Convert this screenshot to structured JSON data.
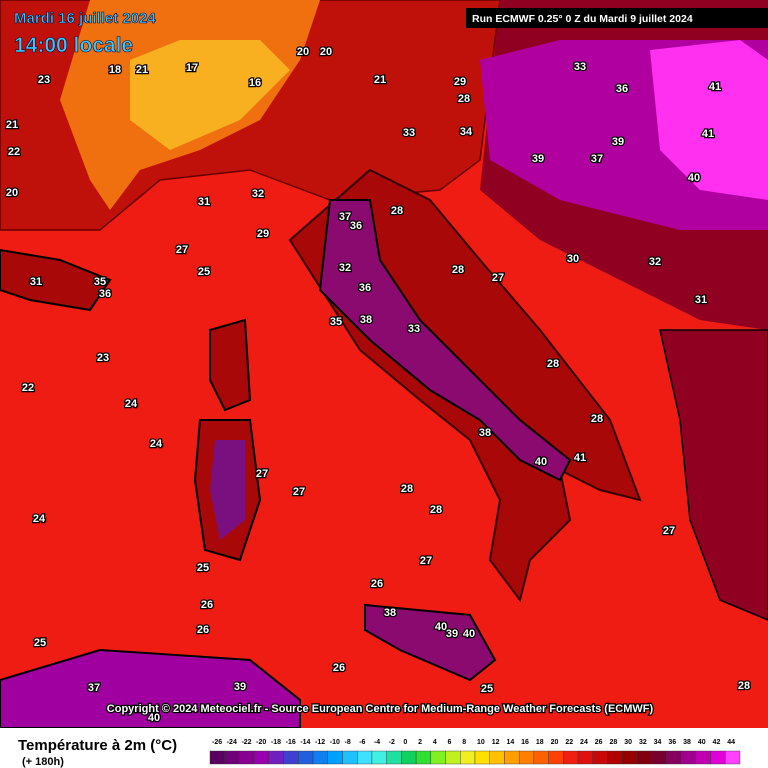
{
  "header": {
    "date": "Mardi 16 juillet 2024",
    "time": "14:00 locale",
    "run": "Run ECMWF 0.25° 0 Z du Mardi 9 juillet 2024"
  },
  "map": {
    "labels": [
      23,
      21,
      22,
      20,
      18,
      21,
      17,
      16,
      20,
      20,
      21,
      29,
      28,
      33,
      36,
      41,
      41,
      39,
      39,
      37,
      40,
      33,
      34,
      31,
      32,
      31,
      35,
      36,
      27,
      25,
      29,
      37,
      36,
      28,
      32,
      36,
      38,
      35,
      33,
      28,
      27,
      30,
      32,
      31,
      23,
      24,
      22,
      24,
      27,
      27,
      28,
      28,
      38,
      40,
      41,
      28,
      28,
      27,
      25,
      26,
      26,
      26,
      38,
      40,
      39,
      40,
      26,
      25,
      39,
      37,
      40,
      25,
      24,
      27,
      28
    ],
    "copyright": "Copyright © 2024 Meteociel.fr - Source European Centre for Medium-Range Weather Forecasts (ECMWF)"
  },
  "legend": {
    "title": "Température à 2m (°C)",
    "lead": "(+ 180h)",
    "ticks": [
      -26,
      -24,
      -22,
      -20,
      -18,
      -16,
      -14,
      -12,
      -10,
      -8,
      -6,
      -4,
      -2,
      0,
      2,
      4,
      6,
      8,
      10,
      12,
      14,
      16,
      18,
      20,
      22,
      24,
      26,
      28,
      30,
      32,
      34,
      36,
      38,
      40,
      42,
      44
    ],
    "colors": [
      "#5a0060",
      "#700078",
      "#880090",
      "#9a00b0",
      "#7020c0",
      "#4040d0",
      "#2060e0",
      "#1080f0",
      "#00a0ff",
      "#20c0ff",
      "#40e0ff",
      "#40f0e0",
      "#20e0a0",
      "#10d060",
      "#30e030",
      "#80f020",
      "#c0f020",
      "#f0f020",
      "#ffe000",
      "#ffc000",
      "#ffa000",
      "#ff8000",
      "#ff6000",
      "#ff4000",
      "#f02010",
      "#e01010",
      "#c80808",
      "#b00000",
      "#980000",
      "#800010",
      "#780030",
      "#880060",
      "#a00090",
      "#c000b0",
      "#e000d8",
      "#ff40ff"
    ]
  }
}
